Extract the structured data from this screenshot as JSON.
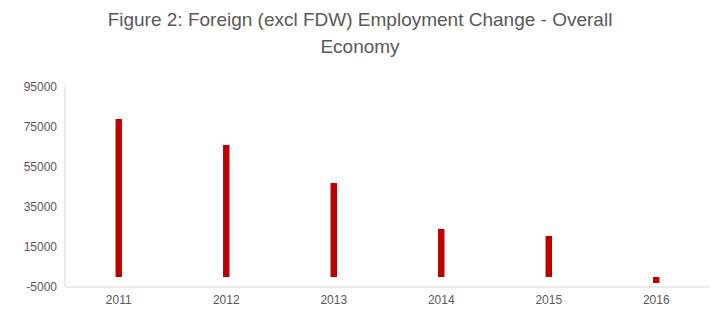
{
  "chart_data": {
    "type": "bar",
    "title": "Figure 2: Foreign (excl FDW) Employment Change - Overall Economy",
    "categories": [
      "2011",
      "2012",
      "2013",
      "2014",
      "2015",
      "2016"
    ],
    "values": [
      79000,
      66000,
      47000,
      24000,
      20500,
      -3000
    ],
    "color": "#c00000",
    "ylim": [
      -5000,
      95000
    ],
    "yticks": [
      -5000,
      15000,
      35000,
      55000,
      75000,
      95000
    ],
    "grid": false
  }
}
